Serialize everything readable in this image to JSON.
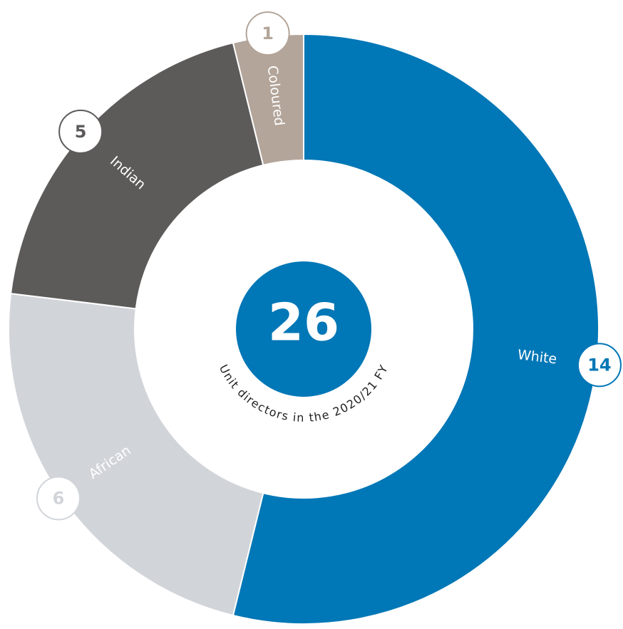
{
  "chart_data": {
    "type": "donut",
    "categories": [
      "White",
      "African",
      "Indian",
      "Coloured"
    ],
    "values": [
      14,
      6,
      5,
      1
    ],
    "colors": [
      "#0077b6",
      "#d1d5da",
      "#5d5a5a",
      "#b3a59a"
    ],
    "center_value": 26,
    "center_label": "Unit directors in the 2020/21 FY"
  }
}
